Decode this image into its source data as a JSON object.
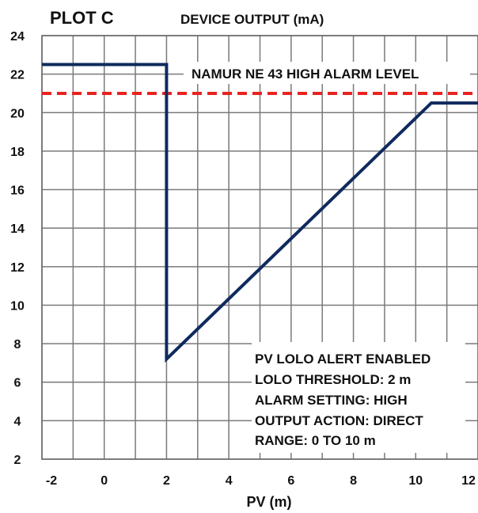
{
  "plot_label": "PLOT C",
  "chart_data": {
    "type": "line",
    "title": "DEVICE OUTPUT (mA)",
    "xlabel": "PV (m)",
    "ylabel": "",
    "xlim": [
      -2,
      12
    ],
    "ylim": [
      2,
      24
    ],
    "x_ticks": [
      -2,
      0,
      2,
      4,
      6,
      8,
      10,
      12
    ],
    "y_ticks": [
      2,
      4,
      6,
      8,
      10,
      12,
      14,
      16,
      18,
      20,
      22,
      24
    ],
    "grid": true,
    "series": [
      {
        "color": "#0f2a5e",
        "x": [
          -2,
          2,
          2,
          10.5,
          12
        ],
        "y": [
          22.5,
          22.5,
          7.2,
          20.5,
          20.5
        ]
      }
    ],
    "reference_lines": [
      {
        "label": "NAMUR NE 43 HIGH ALARM LEVEL",
        "y": 21,
        "style": "dashed",
        "color": "#e8231f"
      }
    ],
    "annotation": [
      "PV LOLO ALERT ENABLED",
      "LOLO THRESHOLD: 2 m",
      "ALARM SETTING: HIGH",
      "OUTPUT ACTION: DIRECT",
      "RANGE: 0 TO 10 m"
    ]
  }
}
